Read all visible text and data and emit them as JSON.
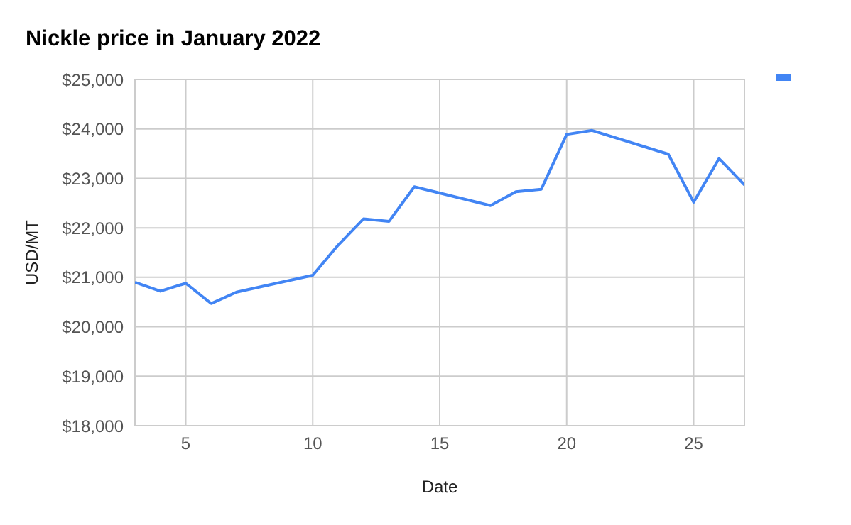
{
  "chart_data": {
    "type": "line",
    "title": "Nickle price in January 2022",
    "xlabel": "Date",
    "ylabel": "USD/MT",
    "x": [
      3,
      4,
      5,
      6,
      7,
      10,
      11,
      12,
      13,
      14,
      17,
      18,
      19,
      20,
      21,
      24,
      25,
      26,
      27
    ],
    "series": [
      {
        "color": "#4285f4",
        "values": [
          20900,
          20720,
          20880,
          20470,
          20700,
          21040,
          21650,
          22180,
          22130,
          22830,
          22450,
          22730,
          22780,
          23890,
          23970,
          23490,
          22520,
          23400,
          22870
        ]
      }
    ],
    "xlim": [
      3,
      27
    ],
    "xticks": [
      5,
      10,
      15,
      20,
      25
    ],
    "ylim": [
      18000,
      25000
    ],
    "yticks": [
      {
        "value": 18000,
        "label": "$18,000"
      },
      {
        "value": 19000,
        "label": "$19,000"
      },
      {
        "value": 20000,
        "label": "$20,000"
      },
      {
        "value": 21000,
        "label": "$21,000"
      },
      {
        "value": 22000,
        "label": "$22,000"
      },
      {
        "value": 23000,
        "label": "$23,000"
      },
      {
        "value": 24000,
        "label": "$24,000"
      },
      {
        "value": 25000,
        "label": "$25,000"
      }
    ],
    "grid": true,
    "marker": "none",
    "line_style": "solid"
  }
}
